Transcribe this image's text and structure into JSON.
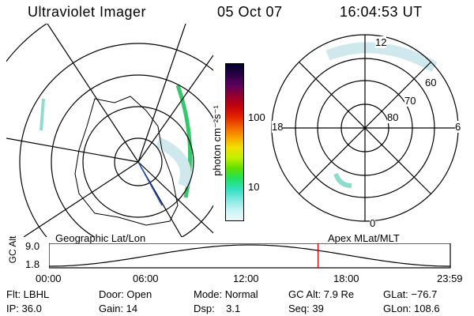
{
  "header": {
    "instrument": "Ultraviolet Imager",
    "date": "05 Oct 07",
    "time": "16:04:53 UT"
  },
  "colors": {
    "aurora_faint": "#cfe8ee",
    "aurora_mid": "#8fdccd",
    "aurora_bright": "#35c86a",
    "grid": "#000000",
    "marker": "#cc0000"
  },
  "geo_map": {
    "label": "Geographic Lat/Lon"
  },
  "mag_map": {
    "label": "Apex MLat/MLT",
    "mlt_labels": {
      "top": "12",
      "bottom": "0",
      "left": "18",
      "right": "6"
    },
    "lat_labels": [
      "60",
      "70",
      "80"
    ]
  },
  "colorbar": {
    "label": "photon cm⁻²s⁻¹",
    "tick_100": "100",
    "tick_10": "10",
    "colors": [
      "#000030",
      "#2a0040",
      "#5a0060",
      "#900030",
      "#c00010",
      "#e02000",
      "#f06000",
      "#f8a000",
      "#f0e000",
      "#c0f000",
      "#60e000",
      "#20e060",
      "#30e0c0",
      "#80e8e0",
      "#c8f4f4",
      "#eef8fa"
    ]
  },
  "altitude_plot": {
    "ylabel": "GC Alt",
    "y_max": "9.0",
    "y_min": "1.8",
    "x_ticks": [
      "00:00",
      "06:00",
      "12:00",
      "18:00",
      "23:59"
    ],
    "marker_time": "16:04:53"
  },
  "footer": {
    "filter": "Flt: LBHL",
    "door": "Door: Open",
    "mode": "Mode: Normal",
    "gc_alt": "GC Alt: 7.9 Re",
    "glat": "GLat: −76.7",
    "ip": "IP: 36.0",
    "gain": "Gain: 14",
    "dsp": "Dsp:    3.1",
    "seq": "Seq: 39",
    "glon": "GLon: 108.6"
  }
}
